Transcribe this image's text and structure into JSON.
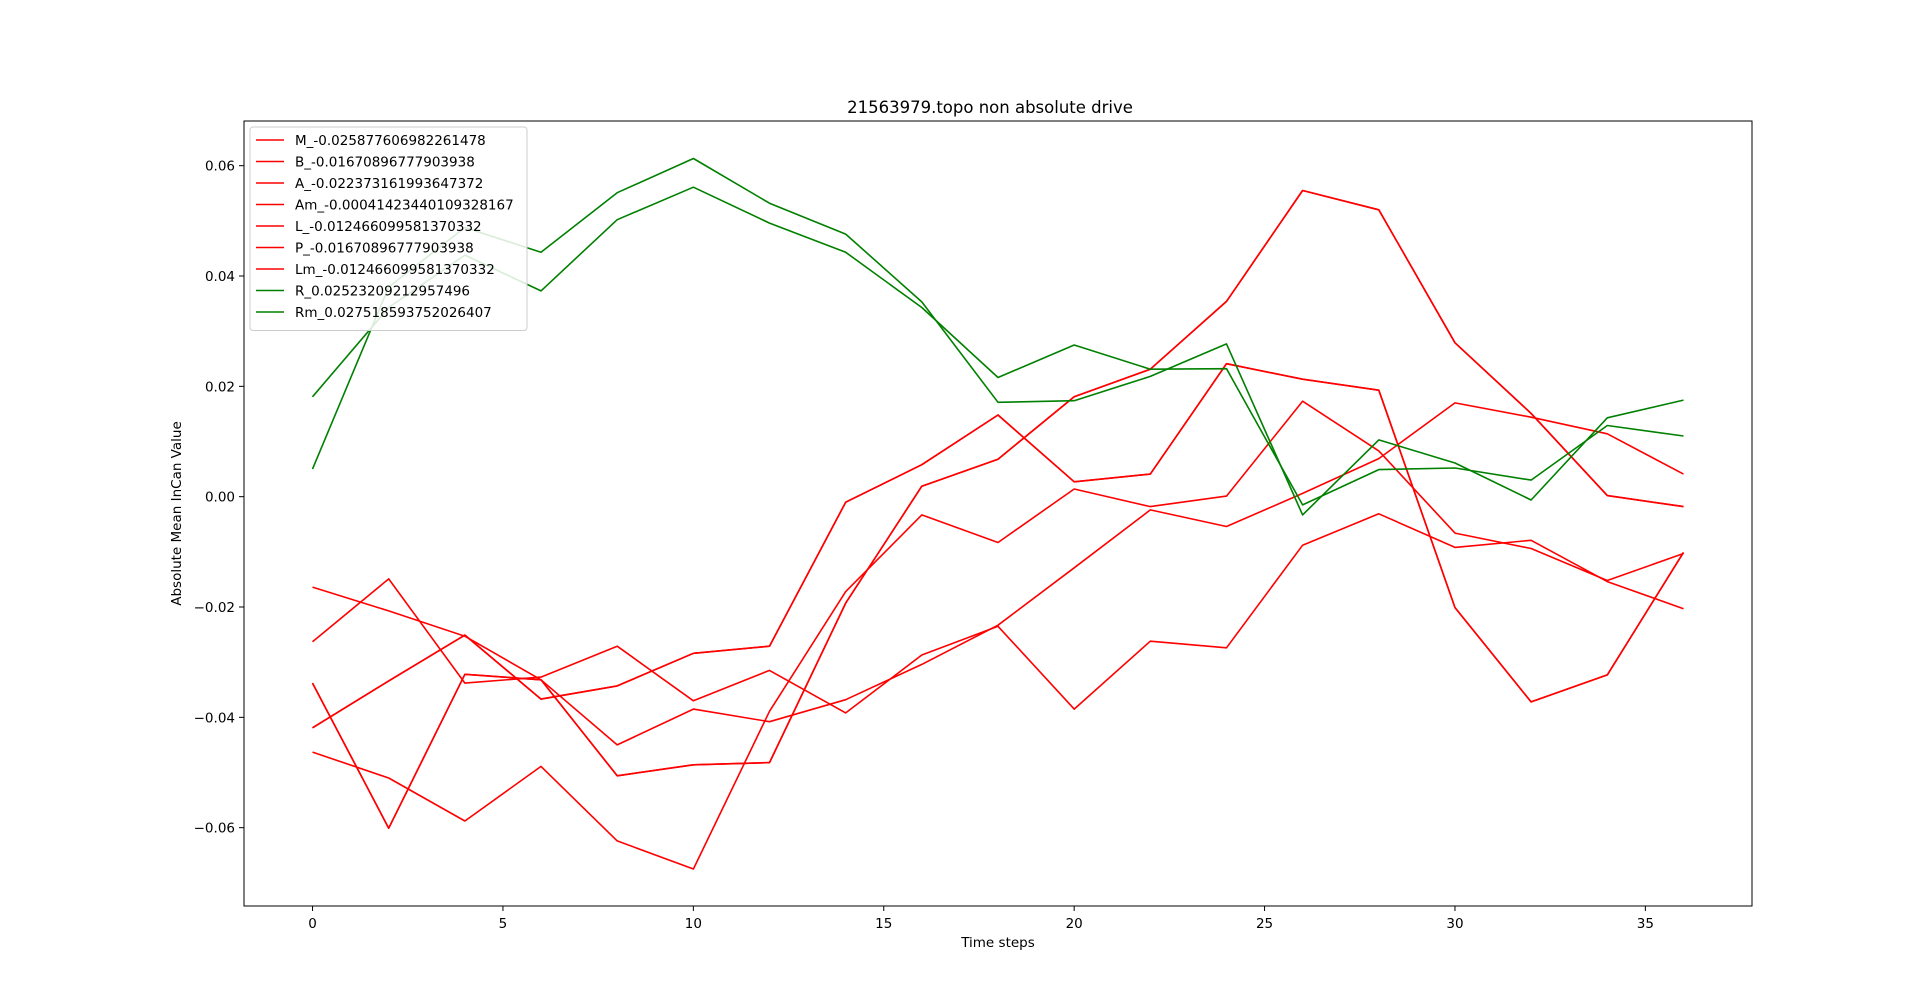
{
  "chart_data": {
    "type": "line",
    "title": "21563979.topo non absolute drive",
    "xlabel": "Time steps",
    "ylabel": "Absolute Mean InCan Value",
    "xlim": [
      -1.8,
      37.8
    ],
    "ylim": [
      -0.0742,
      0.0681
    ],
    "xticks": [
      0,
      5,
      10,
      15,
      20,
      25,
      30,
      35
    ],
    "xtick_labels": [
      "0",
      "5",
      "10",
      "15",
      "20",
      "25",
      "30",
      "35"
    ],
    "yticks": [
      -0.06,
      -0.04,
      -0.02,
      0.0,
      0.02,
      0.04,
      0.06
    ],
    "ytick_labels": [
      "−0.06",
      "−0.04",
      "−0.02",
      "0.00",
      "0.02",
      "0.04",
      "0.06"
    ],
    "grid": false,
    "legend_position": "top-left",
    "x": [
      0,
      2,
      4,
      6,
      8,
      10,
      12,
      14,
      16,
      18,
      20,
      22,
      24,
      26,
      28,
      30,
      32,
      34,
      36
    ],
    "series": [
      {
        "name": "M_-0.025877606982261478",
        "color": "#ff0000",
        "values": [
          -0.0463,
          -0.051,
          -0.0588,
          -0.0489,
          -0.0624,
          -0.0675,
          -0.0389,
          -0.0172,
          -0.0033,
          -0.0083,
          0.0014,
          -0.0018,
          0.0001,
          0.0173,
          0.0083,
          -0.0066,
          -0.0094,
          -0.0152,
          -0.0103
        ]
      },
      {
        "name": "B_-0.01670896777903938",
        "color": "#ff0000",
        "values": [
          -0.0338,
          -0.0601,
          -0.0322,
          -0.0332,
          -0.0506,
          -0.0486,
          -0.0482,
          -0.0193,
          0.0019,
          0.0068,
          0.0181,
          0.0231,
          0.0354,
          0.0555,
          0.052,
          0.0279,
          0.0151,
          0.0002,
          -0.0018
        ]
      },
      {
        "name": "A_-0.022373161993647372",
        "color": "#ff0000",
        "values": [
          -0.0164,
          -0.0207,
          -0.0253,
          -0.0332,
          -0.045,
          -0.0385,
          -0.0408,
          -0.0368,
          -0.0304,
          -0.0233,
          -0.0129,
          -0.0024,
          -0.0054,
          0.0006,
          0.0069,
          0.017,
          0.0144,
          0.0114,
          0.0041
        ]
      },
      {
        "name": "Am_-0.00041423440109328167",
        "color": "#ff0000",
        "values": [
          -0.0419,
          -0.0334,
          -0.0251,
          -0.0367,
          -0.0343,
          -0.0284,
          -0.0271,
          -0.001,
          0.0058,
          0.0148,
          0.0027,
          0.0041,
          0.0241,
          0.0213,
          0.0193,
          -0.0201,
          -0.0372,
          -0.0323,
          -0.0101
        ]
      },
      {
        "name": "L_-0.012466099581370332",
        "color": "#ff0000",
        "values": [
          -0.0338,
          -0.0601,
          -0.0322,
          -0.0332,
          -0.0506,
          -0.0486,
          -0.0482,
          -0.0193,
          0.0019,
          0.0068,
          0.0181,
          0.0231,
          0.0354,
          0.0555,
          0.052,
          0.0279,
          0.0151,
          0.0002,
          -0.0018
        ]
      },
      {
        "name": "P_-0.01670896777903938",
        "color": "#ff0000",
        "values": [
          -0.0419,
          -0.0334,
          -0.0251,
          -0.0367,
          -0.0343,
          -0.0284,
          -0.0271,
          -0.001,
          0.0058,
          0.0148,
          0.0027,
          0.0041,
          0.0241,
          0.0213,
          0.0193,
          -0.0201,
          -0.0372,
          -0.0323,
          -0.0101
        ]
      },
      {
        "name": "Lm_-0.012466099581370332",
        "color": "#ff0000",
        "values": [
          -0.0263,
          -0.0149,
          -0.0338,
          -0.0327,
          -0.0271,
          -0.037,
          -0.0315,
          -0.0392,
          -0.0287,
          -0.0235,
          -0.0385,
          -0.0262,
          -0.0274,
          -0.0088,
          -0.0031,
          -0.0092,
          -0.0079,
          -0.0154,
          -0.0203
        ]
      },
      {
        "name": "R_0.02523209212957496",
        "color": "#008000",
        "values": [
          0.005,
          0.038,
          0.0488,
          0.0443,
          0.0551,
          0.0613,
          0.0532,
          0.0476,
          0.0353,
          0.0171,
          0.0174,
          0.0218,
          0.0277,
          -0.0033,
          0.0103,
          0.0061,
          -0.0006,
          0.0143,
          0.0175
        ]
      },
      {
        "name": "Rm_0.027518593752026407",
        "color": "#008000",
        "values": [
          0.0181,
          0.0343,
          0.0438,
          0.0373,
          0.0502,
          0.0561,
          0.0496,
          0.0443,
          0.0343,
          0.0216,
          0.0275,
          0.0231,
          0.0232,
          -0.0015,
          0.0049,
          0.0052,
          0.003,
          0.0129,
          0.011
        ]
      }
    ]
  }
}
